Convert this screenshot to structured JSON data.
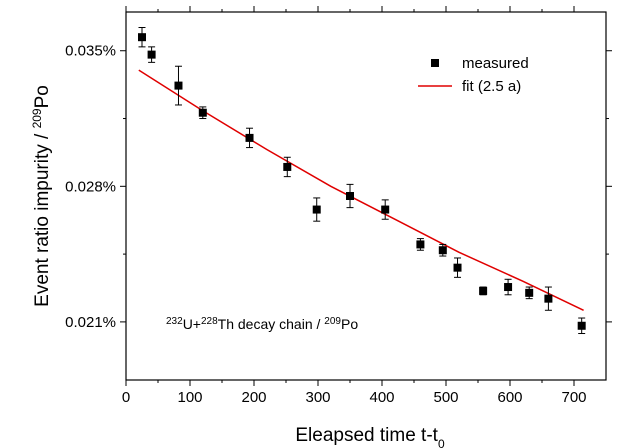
{
  "chart_data": {
    "type": "scatter",
    "title": "",
    "xlabel": {
      "main": "Eleapsed time t-t",
      "sub": "0"
    },
    "ylabel": {
      "main": "Event ratio impurity / ",
      "sup": "209",
      "tail": "Po"
    },
    "xlim": [
      0,
      750
    ],
    "ylim": [
      0.018,
      0.037
    ],
    "x_ticks": [
      0,
      100,
      200,
      300,
      400,
      500,
      600,
      700
    ],
    "x_tick_labels": [
      "0",
      "100",
      "200",
      "300",
      "400",
      "500",
      "600",
      "700"
    ],
    "y_ticks": [
      0.021,
      0.028,
      0.035
    ],
    "y_tick_labels": [
      "0.021%",
      "0.028%",
      "0.035%"
    ],
    "grid": false,
    "legend_position": "top-right",
    "colors": {
      "measured": "#000000",
      "fit": "#e00000"
    },
    "series": [
      {
        "name": "measured",
        "kind": "points",
        "marker": "square",
        "x": [
          25,
          40,
          82,
          120,
          193,
          252,
          298,
          350,
          405,
          460,
          495,
          518,
          558,
          597,
          630,
          660,
          712
        ],
        "y": [
          0.0357,
          0.0348,
          0.0332,
          0.0318,
          0.0305,
          0.029,
          0.0268,
          0.0275,
          0.0268,
          0.025,
          0.0247,
          0.0238,
          0.0226,
          0.0228,
          0.0225,
          0.0222,
          0.0208
        ],
        "err": [
          0.0005,
          0.0004,
          0.001,
          0.0003,
          0.0005,
          0.0005,
          0.0006,
          0.0006,
          0.0005,
          0.0003,
          0.0003,
          0.0005,
          0.0002,
          0.0004,
          0.0003,
          0.0006,
          0.0004
        ]
      },
      {
        "name": "fit (2.5 a)",
        "kind": "line",
        "x": [
          20,
          120,
          220,
          320,
          420,
          520,
          620,
          715
        ],
        "y": [
          0.034,
          0.0319,
          0.0299,
          0.028,
          0.0263,
          0.0246,
          0.0231,
          0.0216
        ]
      }
    ],
    "legend": [
      {
        "label": "measured",
        "kind": "points"
      },
      {
        "label": "fit (2.5 a)",
        "kind": "line"
      }
    ],
    "annotation": {
      "sup1": "232",
      "part1": "U+",
      "sup2": "228",
      "part2": "Th decay chain / ",
      "sup3": "209",
      "part3": "Po"
    }
  }
}
